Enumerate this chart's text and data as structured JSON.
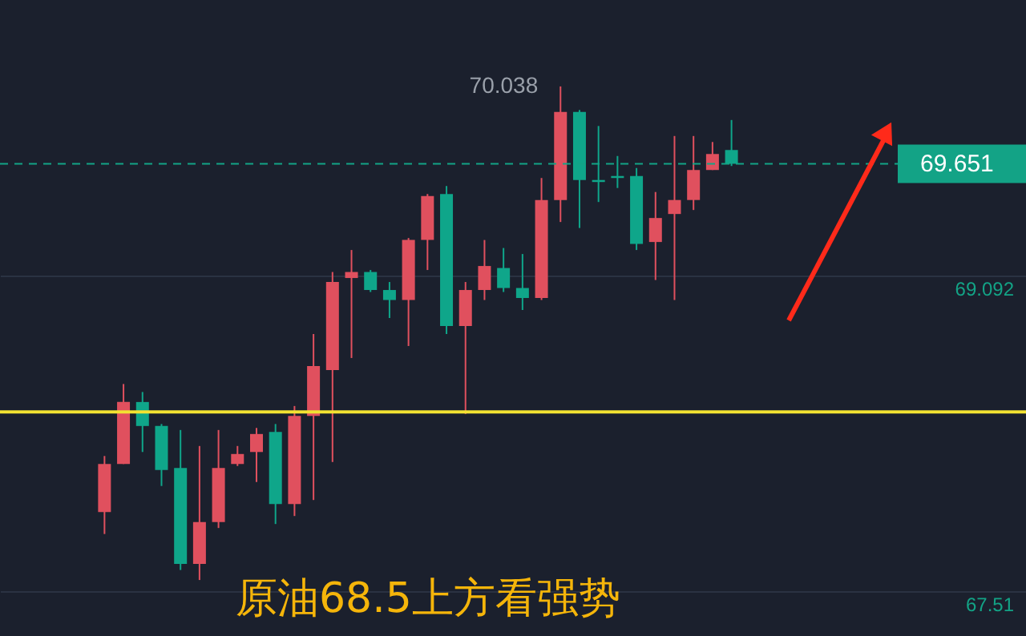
{
  "chart_data": {
    "type": "candlestick",
    "categories": [
      null,
      null,
      null,
      null,
      null,
      null,
      null,
      null,
      null,
      null,
      null,
      null,
      null,
      null,
      null,
      null,
      null,
      null,
      null,
      null,
      null,
      null,
      null,
      null,
      null,
      null,
      null,
      null,
      null,
      null,
      null,
      null,
      null,
      null,
      null,
      null,
      null,
      null,
      null,
      null,
      null,
      null,
      null,
      null,
      null,
      null,
      null,
      null,
      null,
      null,
      null,
      null,
      null,
      null
    ],
    "ohlc": [
      null,
      null,
      null,
      null,
      null,
      [
        67.91,
        68.19,
        67.8,
        68.15
      ],
      [
        68.15,
        68.55,
        68.15,
        68.46
      ],
      [
        68.46,
        68.51,
        68.21,
        68.34
      ],
      [
        68.34,
        68.35,
        68.04,
        68.12
      ],
      [
        68.13,
        68.32,
        67.62,
        67.65
      ],
      [
        67.65,
        68.24,
        67.57,
        67.86
      ],
      [
        67.86,
        68.32,
        67.83,
        68.13
      ],
      [
        68.15,
        68.24,
        68.14,
        68.2
      ],
      [
        68.21,
        68.33,
        68.06,
        68.3
      ],
      [
        68.31,
        68.35,
        67.85,
        67.95
      ],
      [
        67.95,
        68.44,
        67.89,
        68.39
      ],
      [
        68.39,
        68.8,
        67.97,
        68.64
      ],
      [
        68.62,
        69.11,
        68.16,
        69.06
      ],
      [
        69.08,
        69.22,
        68.68,
        69.11
      ],
      [
        69.11,
        69.12,
        69.01,
        69.02
      ],
      [
        69.02,
        69.06,
        68.88,
        68.97
      ],
      [
        68.97,
        69.28,
        68.74,
        69.27
      ],
      [
        69.27,
        69.5,
        69.12,
        69.49
      ],
      [
        69.5,
        69.54,
        68.8,
        68.84
      ],
      [
        68.84,
        69.06,
        68.4,
        69.02
      ],
      [
        69.02,
        69.27,
        68.97,
        69.14
      ],
      [
        69.13,
        69.23,
        69.01,
        69.03
      ],
      [
        69.03,
        69.2,
        68.92,
        68.98
      ],
      [
        68.98,
        69.58,
        68.97,
        69.47
      ],
      [
        69.47,
        70.038,
        69.36,
        69.91
      ],
      [
        69.91,
        69.92,
        69.33,
        69.57
      ],
      [
        69.57,
        69.84,
        69.46,
        69.56
      ],
      [
        69.59,
        69.69,
        69.53,
        69.58
      ],
      [
        69.59,
        69.63,
        69.22,
        69.25
      ],
      [
        69.26,
        69.51,
        69.07,
        69.38
      ],
      [
        69.4,
        69.79,
        68.97,
        69.47
      ],
      [
        69.47,
        69.79,
        69.42,
        69.62
      ],
      [
        69.62,
        69.76,
        69.62,
        69.7
      ],
      [
        69.72,
        69.87,
        69.64,
        69.651
      ],
      null,
      null,
      null,
      null,
      null,
      null,
      null,
      null,
      null,
      null,
      null,
      null,
      null,
      null,
      null
    ],
    "colors": [
      null,
      null,
      null,
      null,
      null,
      "#e0505e",
      "#e0505e",
      "#0fa68a",
      "#0fa68a",
      "#0fa68a",
      "#e0505e",
      "#e0505e",
      "#e0505e",
      "#e0505e",
      "#0fa68a",
      "#e0505e",
      "#e0505e",
      "#e0505e",
      "#e0505e",
      "#0fa68a",
      "#0fa68a",
      "#e0505e",
      "#e0505e",
      "#0fa68a",
      "#e0505e",
      "#e0505e",
      "#0fa68a",
      "#0fa68a",
      "#e0505e",
      "#e0505e",
      "#0fa68a",
      "#0fa68a",
      "#0fa68a",
      "#0fa68a",
      "#e0505e",
      "#e0505e",
      "#e0505e",
      "#e0505e",
      "#0fa68a",
      null,
      null,
      null,
      null,
      null,
      null,
      null,
      null,
      null,
      null,
      null,
      null,
      null,
      null,
      null
    ],
    "ylim": [
      67.29,
      70.47
    ],
    "yticks": [
      69.092,
      {
        "value": 67.515,
        "label": "67.51"
      }
    ],
    "grid": "y",
    "ref_lines": [
      {
        "axis": "y",
        "value": 68.41,
        "color": "#f2e232",
        "line_style": "solid"
      },
      {
        "axis": "y",
        "value": 69.651,
        "label": "69.651",
        "color": "#13a386",
        "line_style": "dashed"
      }
    ],
    "annotations": [
      "70.038",
      "原油68.5上方看强势"
    ]
  }
}
